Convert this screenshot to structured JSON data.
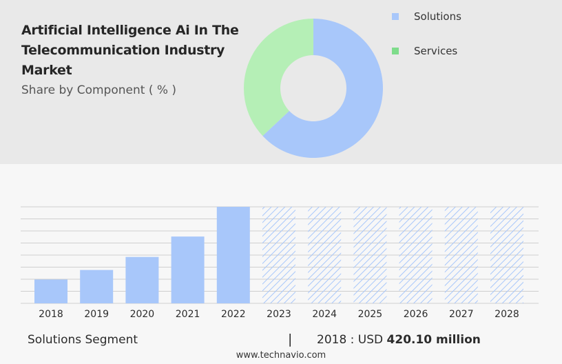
{
  "title": "Artificial Intelligence Ai In The Telecommunication Industry Market",
  "subtitle": "Share by Component ( % )",
  "colors": {
    "solutions": "#a8c7fa",
    "services": "#b5efb6",
    "services_legend": "#7edc8b",
    "hatch": "#a8c7fa",
    "grid": "#cfcfcf"
  },
  "legend": [
    {
      "label": "Solutions",
      "color": "#a8c7fa"
    },
    {
      "label": "Services",
      "color": "#7edc8b"
    }
  ],
  "chart_data": [
    {
      "type": "pie",
      "variant": "donut",
      "labels": [
        "Solutions",
        "Services"
      ],
      "values": [
        63,
        37
      ]
    },
    {
      "type": "bar",
      "categories": [
        "2018",
        "2019",
        "2020",
        "2021",
        "2022",
        "2023",
        "2024",
        "2025",
        "2026",
        "2027",
        "2028"
      ],
      "values": [
        420.1,
        588,
        818,
        1178,
        1702,
        null,
        null,
        null,
        null,
        null,
        null
      ],
      "forecast": [
        false,
        false,
        false,
        false,
        false,
        true,
        true,
        true,
        true,
        true,
        true
      ],
      "ylim": [
        0,
        1702
      ],
      "grid": true
    }
  ],
  "footer": {
    "segment": "Solutions Segment",
    "divider": "|",
    "prefix": "2018 : USD",
    "amount": "420.10 million"
  },
  "source": "www.technavio.com"
}
